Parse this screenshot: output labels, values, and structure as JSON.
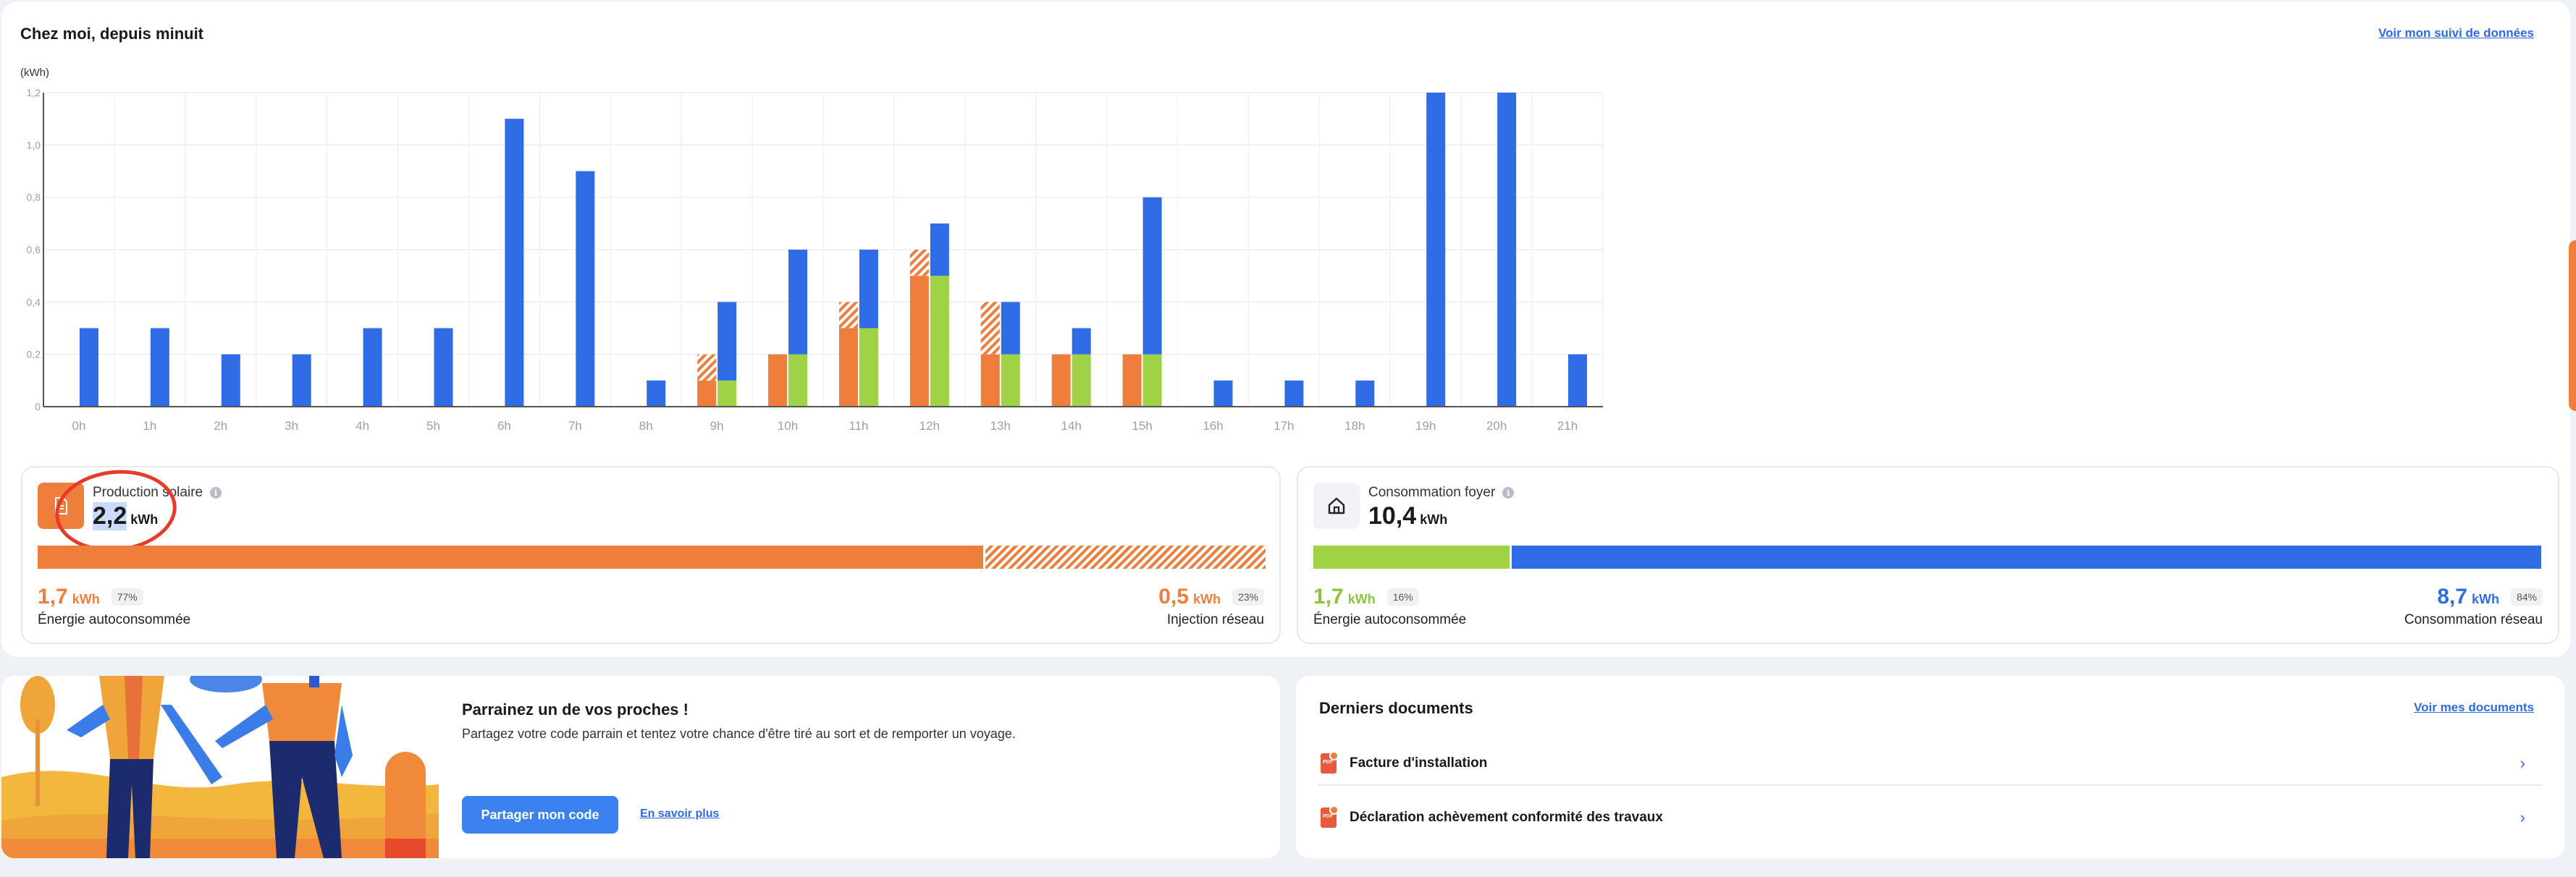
{
  "energy": {
    "title": "Chez moi, depuis minuit",
    "link": "Voir mon suivi de données",
    "unit_label": "(kWh)"
  },
  "chart_data": {
    "type": "bar",
    "stacked": true,
    "categories": [
      "0h",
      "1h",
      "2h",
      "3h",
      "4h",
      "5h",
      "6h",
      "7h",
      "8h",
      "9h",
      "10h",
      "11h",
      "12h",
      "13h",
      "14h",
      "15h",
      "16h",
      "17h",
      "18h",
      "19h",
      "20h",
      "21h"
    ],
    "ylim": [
      0,
      1.2
    ],
    "yticks": [
      "0",
      "0,2",
      "0,4",
      "0,6",
      "0,8",
      "1,0",
      "1,2"
    ],
    "grid": true,
    "groups": [
      {
        "role": "production",
        "series": [
          {
            "style": "solid",
            "color": "#ef7d3c",
            "values": [
              0,
              0,
              0,
              0,
              0,
              0,
              0,
              0,
              0,
              0.1,
              0.2,
              0.3,
              0.5,
              0.2,
              0.2,
              0.2,
              0,
              0,
              0,
              0,
              0,
              0
            ]
          },
          {
            "style": "hatched",
            "color": "#ef7d3c",
            "values": [
              0,
              0,
              0,
              0,
              0,
              0,
              0,
              0,
              0,
              0.1,
              0,
              0.1,
              0.1,
              0.2,
              0,
              0,
              0,
              0,
              0,
              0,
              0,
              0
            ]
          }
        ]
      },
      {
        "role": "consumption",
        "series": [
          {
            "style": "solid",
            "color": "#9fd245",
            "values": [
              0,
              0,
              0,
              0,
              0,
              0,
              0,
              0,
              0,
              0.1,
              0.2,
              0.3,
              0.5,
              0.2,
              0.2,
              0.2,
              0,
              0,
              0,
              0,
              0,
              0
            ]
          },
          {
            "style": "solid",
            "color": "#2f6ce5",
            "values": [
              0.3,
              0.3,
              0.2,
              0.2,
              0.3,
              0.3,
              1.1,
              0.9,
              0.1,
              0.3,
              0.4,
              0.3,
              0.2,
              0.2,
              0.1,
              0.6,
              0.1,
              0.1,
              0.1,
              1.2,
              1.2,
              0.2
            ]
          }
        ]
      }
    ]
  },
  "solar": {
    "label": "Production solaire",
    "value_hl": "2,2",
    "unit": "kWh",
    "self_consumed_pct": 77,
    "left_value": "1,7",
    "left_unit": "kWh",
    "left_pct": "77%",
    "left_label": "Énergie autoconsommée",
    "right_value": "0,5",
    "right_unit": "kWh",
    "right_pct": "23%",
    "right_label": "Injection réseau"
  },
  "home": {
    "label": "Consommation foyer",
    "value": "10,4",
    "unit": "kWh",
    "self_consumed_pct": 16,
    "left_value": "1,7",
    "left_unit": "kWh",
    "left_pct": "16%",
    "left_label": "Énergie autoconsommée",
    "right_value": "8,7",
    "right_unit": "kWh",
    "right_pct": "84%",
    "right_label": "Consommation réseau"
  },
  "referral": {
    "title": "Parrainez un de vos proches !",
    "text": "Partagez votre code parrain et tentez votre chance d'être tiré au sort et de remporter un voyage.",
    "button": "Partager mon code",
    "link": "En savoir plus"
  },
  "documents": {
    "title": "Derniers documents",
    "link": "Voir mes documents",
    "items": [
      {
        "label": "Facture d'installation"
      },
      {
        "label": "Déclaration achèvement conformité des travaux"
      }
    ]
  },
  "colors": {
    "accent": "#2d6be4",
    "solar": "#ef7d3c",
    "self_consumed": "#9fd245",
    "grid": "#2f6ce5"
  }
}
